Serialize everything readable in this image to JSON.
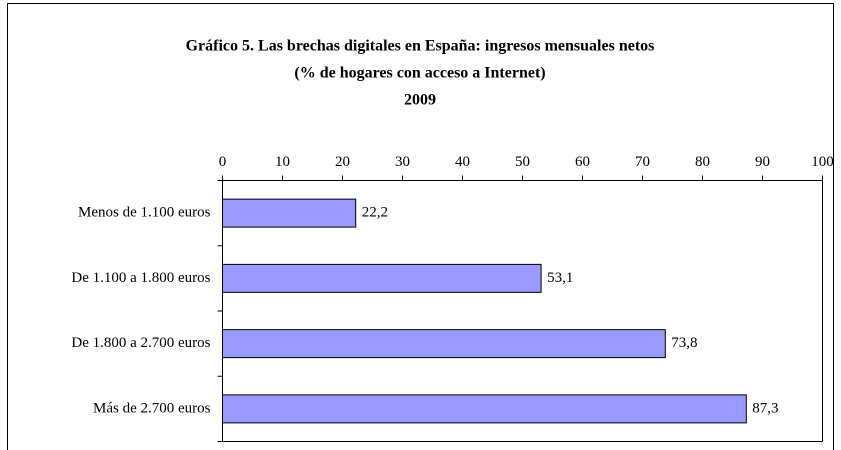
{
  "chart_data": {
    "type": "hbar",
    "title": [
      "Gráfico 5. Las brechas digitales en España: ingresos mensuales netos",
      "(% de hogares con acceso a Internet)",
      "2009"
    ],
    "categories": [
      "Menos de 1.100 euros",
      "De 1.100 a 1.800 euros",
      "De 1.800 a 2.700 euros",
      "Más de 2.700 euros"
    ],
    "values": [
      22.2,
      53.1,
      73.8,
      87.3
    ],
    "value_labels": [
      "22,2",
      "53,1",
      "73,8",
      "87,3"
    ],
    "color": "#9999ff",
    "xlim": [
      0,
      100
    ],
    "xticks": [
      0,
      10,
      20,
      30,
      40,
      50,
      60,
      70,
      80,
      90,
      100
    ]
  }
}
